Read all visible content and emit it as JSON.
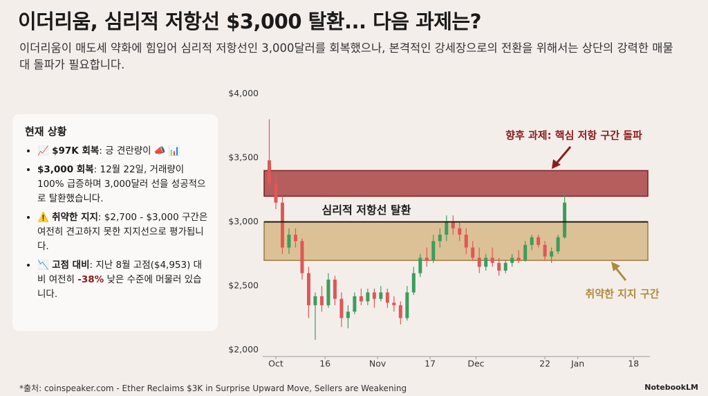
{
  "chart_data": {
    "type": "candlestick",
    "title": "이더리움, 심리적 저항선 $3,000 탈환... 다음 과제는?",
    "subtitle": "이더리움이 매도세 약화에 힘입어 심리적 저항선인 3,000달러를 회복했으나, 본격적인 강세장으로의 전환을 위해서는 상단의 강력한 매물대 돌파가 필요합니다.",
    "x": [
      -2,
      0,
      2,
      4,
      6,
      8,
      10,
      12,
      14,
      16,
      18,
      20,
      22,
      24,
      26,
      28,
      30,
      32,
      34,
      36,
      38,
      40,
      42,
      44,
      46,
      48,
      50,
      52,
      54,
      56,
      58,
      60,
      62,
      64,
      66,
      68,
      70,
      72,
      74,
      76,
      78,
      80,
      82,
      84,
      86,
      88
    ],
    "open": [
      3480,
      3300,
      3150,
      2800,
      2900,
      2850,
      2600,
      2350,
      2420,
      2350,
      2550,
      2400,
      2250,
      2300,
      2420,
      2380,
      2450,
      2400,
      2450,
      2370,
      2350,
      2250,
      2450,
      2600,
      2720,
      2700,
      2850,
      2900,
      3000,
      2950,
      2900,
      2800,
      2720,
      2650,
      2720,
      2680,
      2620,
      2680,
      2720,
      2700,
      2820,
      2880,
      2820,
      2730,
      2770,
      2880
    ],
    "high": [
      3800,
      3380,
      3200,
      2950,
      2950,
      2870,
      2650,
      2450,
      2500,
      2600,
      2580,
      2450,
      2350,
      2450,
      2480,
      2480,
      2480,
      2500,
      2480,
      2420,
      2380,
      2500,
      2650,
      2750,
      2800,
      2900,
      2950,
      3050,
      3050,
      3000,
      2950,
      2850,
      2800,
      2750,
      2800,
      2720,
      2700,
      2750,
      2780,
      2850,
      2900,
      2900,
      2850,
      2800,
      2900,
      3220
    ],
    "low": [
      3250,
      3100,
      2750,
      2750,
      2800,
      2550,
      2250,
      2080,
      2300,
      2330,
      2350,
      2180,
      2170,
      2280,
      2350,
      2350,
      2330,
      2380,
      2330,
      2300,
      2200,
      2230,
      2430,
      2570,
      2650,
      2680,
      2800,
      2850,
      2900,
      2850,
      2750,
      2700,
      2600,
      2620,
      2650,
      2580,
      2600,
      2650,
      2680,
      2690,
      2780,
      2800,
      2700,
      2680,
      2750,
      2870
    ],
    "close": [
      3300,
      3150,
      2800,
      2900,
      2850,
      2600,
      2350,
      2420,
      2350,
      2550,
      2400,
      2250,
      2300,
      2420,
      2380,
      2450,
      2400,
      2450,
      2370,
      2350,
      2250,
      2450,
      2600,
      2720,
      2700,
      2850,
      2900,
      3000,
      2950,
      2900,
      2800,
      2720,
      2650,
      2720,
      2680,
      2620,
      2680,
      2720,
      2700,
      2820,
      2880,
      2820,
      2730,
      2770,
      2880,
      3150
    ],
    "up_color": "#3a9e5c",
    "down_color": "#e05757",
    "xlim": [
      -4,
      114
    ],
    "xticks": [
      {
        "value": 0,
        "label": "Oct"
      },
      {
        "value": 15,
        "label": "16"
      },
      {
        "value": 31,
        "label": "Nov"
      },
      {
        "value": 47,
        "label": "17"
      },
      {
        "value": 61,
        "label": "Dec"
      },
      {
        "value": 82,
        "label": "22"
      },
      {
        "value": 92,
        "label": "Jan"
      },
      {
        "value": 109,
        "label": "18"
      }
    ],
    "ylim": [
      1950,
      4050
    ],
    "yticks": [
      {
        "value": 2000,
        "label": "$2,000"
      },
      {
        "value": 2500,
        "label": "$2,500"
      },
      {
        "value": 3000,
        "label": "$3,000"
      },
      {
        "value": 3500,
        "label": "$3,500"
      },
      {
        "value": 4000,
        "label": "$4,000"
      }
    ],
    "grid": false,
    "zones": [
      {
        "label": "향후 과제: 핵심 저항 구간 돌파",
        "range": [
          3200,
          3400
        ],
        "color": "#a94444",
        "label_color": "#8b1c1c"
      },
      {
        "label": "취약한 지지 구간",
        "range": [
          2700,
          3000
        ],
        "color": "#d6b27a",
        "label_color": "#b08a3a"
      }
    ],
    "lines": [
      {
        "label": "심리적 저항선 탈환",
        "value": 3000,
        "color": "#1a1a1a"
      }
    ]
  },
  "panel": {
    "title": "현재 상황",
    "items": [
      [
        {
          "text": "📈 ",
          "style": "plain"
        },
        {
          "text": "$97K 회복",
          "style": "bold"
        },
        {
          "text": ": 긍 견란량이 📣 📊",
          "style": "plain"
        }
      ],
      [
        {
          "text": "$3,000 회복",
          "style": "bold"
        },
        {
          "text": ": 12월 22일, 거래량이 100% 급증하며 3,000달러 선을 성공적으로 탈환했습니다.",
          "style": "plain"
        }
      ],
      [
        {
          "text": "⚠️ ",
          "style": "plain"
        },
        {
          "text": "취약한 지지",
          "style": "bold"
        },
        {
          "text": ": $2,700 - $3,000 구간은 여전히 견고하지 못한 지지선으로 평가됩니다.",
          "style": "plain"
        }
      ],
      [
        {
          "text": "📉 ",
          "style": "plain"
        },
        {
          "text": "고점 대비",
          "style": "bold"
        },
        {
          "text": ": 지난 8월 고점($4,953) 대비 여전히 ",
          "style": "plain"
        },
        {
          "text": "-38%",
          "style": "red"
        },
        {
          "text": " 낮은 수준에 머물러 있습니다.",
          "style": "plain"
        }
      ]
    ]
  },
  "source": "*출처: coinspeaker.com - Ether Reclaims $3K in Surprise Upward Move, Sellers are Weakening",
  "logo": "NotebookLM"
}
